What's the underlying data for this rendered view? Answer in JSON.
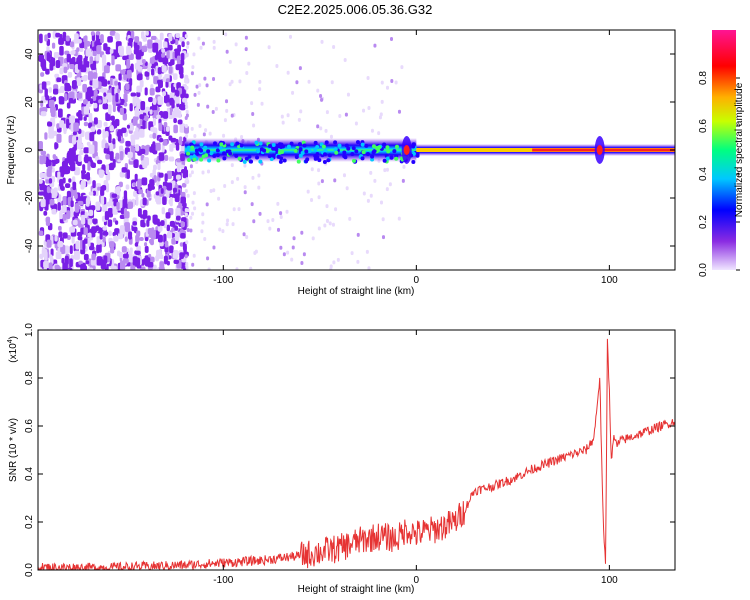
{
  "title": "C2E2.2025.006.05.36.G32",
  "chart_data": [
    {
      "type": "heatmap",
      "xlabel": "Height of straight line (km)",
      "ylabel": "Frequency (Hz)",
      "xlim": [
        -196,
        134
      ],
      "ylim": [
        -50,
        50
      ],
      "x_ticks": [
        -100,
        0,
        100
      ],
      "y_ticks": [
        -40,
        -20,
        0,
        20,
        40
      ],
      "x_tick_labels": [
        "-100",
        "0",
        "100"
      ],
      "y_tick_labels": [
        "-40",
        "-20",
        "0",
        "20",
        "40"
      ],
      "grid": false,
      "colorbar": {
        "label": "Normalized spectral amplitude",
        "range": [
          0.0,
          1.0
        ],
        "ticks": [
          0.0,
          0.2,
          0.4,
          0.6,
          0.8
        ],
        "tick_labels": [
          "0.0",
          "0.2",
          "0.4",
          "0.6",
          "0.8"
        ],
        "colors": [
          "#f0e6ff",
          "#8a2be2",
          "#0000ff",
          "#00c8ff",
          "#00ff80",
          "#c8ff00",
          "#ffb000",
          "#ff0000",
          "#ff1493"
        ]
      },
      "signal_band": {
        "center_hz": 0,
        "start_km": -120,
        "end_km": 134,
        "strong_features_km": [
          -5,
          95
        ]
      },
      "noise_region_km": [
        -196,
        -120
      ]
    },
    {
      "type": "line",
      "xlabel": "Height of straight line (km)",
      "ylabel": "SNR (10 * v/v)",
      "y_multiplier_label": "(x10",
      "y_multiplier_exp": "4",
      "xlim": [
        -196,
        134
      ],
      "ylim": [
        0.0,
        1.0
      ],
      "x_ticks": [
        -100,
        0,
        100
      ],
      "y_ticks": [
        0.0,
        0.2,
        0.4,
        0.6,
        0.8,
        1.0
      ],
      "x_tick_labels": [
        "-100",
        "0",
        "100"
      ],
      "y_tick_labels": [
        "0.0",
        "0.2",
        "0.4",
        "0.6",
        "0.8",
        "1.0"
      ],
      "grid": false,
      "color": "#e63333",
      "series": [
        {
          "x": [
            -196,
            -180,
            -160,
            -140,
            -120,
            -100,
            -80,
            -60,
            -40,
            -30,
            -20,
            -10,
            -5,
            0,
            10,
            20,
            25,
            28,
            30,
            40,
            50,
            60,
            70,
            80,
            88,
            92,
            95,
            97,
            98,
            99,
            100,
            101,
            102,
            104,
            106,
            110,
            120,
            134
          ],
          "y": [
            0.01,
            0.01,
            0.01,
            0.015,
            0.02,
            0.03,
            0.04,
            0.06,
            0.09,
            0.12,
            0.14,
            0.13,
            0.17,
            0.15,
            0.17,
            0.2,
            0.25,
            0.3,
            0.33,
            0.35,
            0.38,
            0.42,
            0.45,
            0.48,
            0.5,
            0.55,
            0.8,
            0.15,
            0.02,
            0.95,
            0.75,
            0.45,
            0.55,
            0.52,
            0.54,
            0.55,
            0.58,
            0.62
          ]
        }
      ]
    }
  ]
}
